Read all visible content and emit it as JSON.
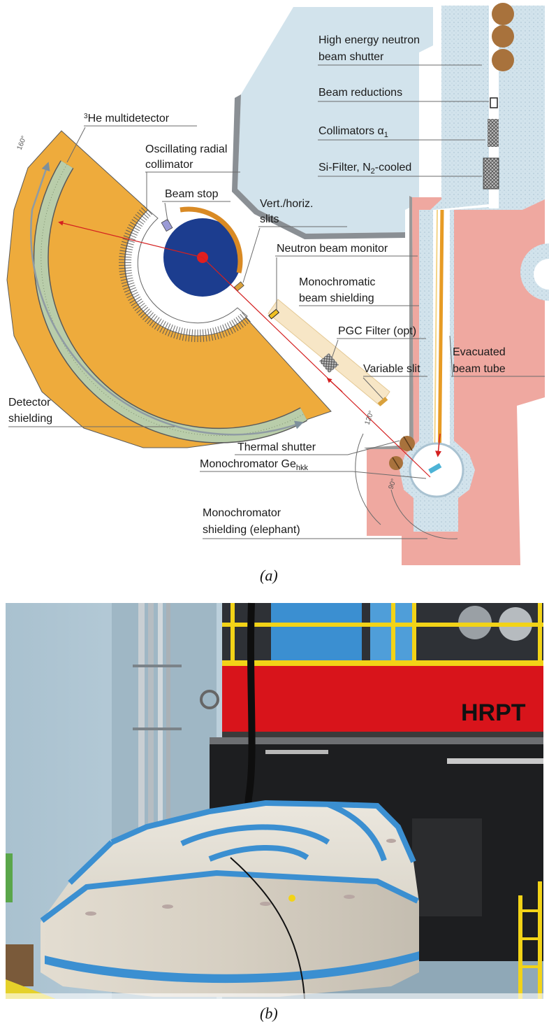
{
  "panel_a": {
    "caption": "(a)",
    "labels": {
      "high_energy_shutter_1": "High energy neutron",
      "high_energy_shutter_2": "beam shutter",
      "beam_reductions": "Beam reductions",
      "collimators": "Collimators α",
      "collimators_sub": "1",
      "si_filter_pre": "Si-Filter, N",
      "si_filter_sub": "2",
      "si_filter_post": "-cooled",
      "he_multidetector_sup": "3",
      "he_multidetector": "He multidetector",
      "oscillating_1": "Oscillating radial",
      "oscillating_2": "collimator",
      "beam_stop": "Beam stop",
      "slits_1": "Vert./horiz.",
      "slits_2": "slits",
      "beam_monitor": "Neutron beam monitor",
      "mono_beam_shield_1": "Monochromatic",
      "mono_beam_shield_2": "beam shielding",
      "pgc_filter": "PGC Filter (opt)",
      "evacuated_1": "Evacuated",
      "evacuated_2": "beam tube",
      "variable_slit": "Variable slit",
      "detector_shielding_1": "Detector",
      "detector_shielding_2": "shielding",
      "thermal_shutter": "Thermal shutter",
      "monochromator_pre": "Monochromator Ge",
      "monochromator_sub": "hkk",
      "mono_shield_1": "Monochromator",
      "mono_shield_2": "shielding (elephant)"
    },
    "angles": {
      "detector_arc": "160°",
      "takeoff_a": "120°",
      "takeoff_b": "90°"
    },
    "colors": {
      "detector_shielding": "#eeab3c",
      "detector_tube": "#b9cdaa",
      "sample": "#1c3d8f",
      "source_shielding": "#d2e3ec",
      "elephant": "#efa8a0",
      "beam": "#d42020"
    }
  },
  "panel_b": {
    "caption": "(b)",
    "sign": "HRPT"
  }
}
